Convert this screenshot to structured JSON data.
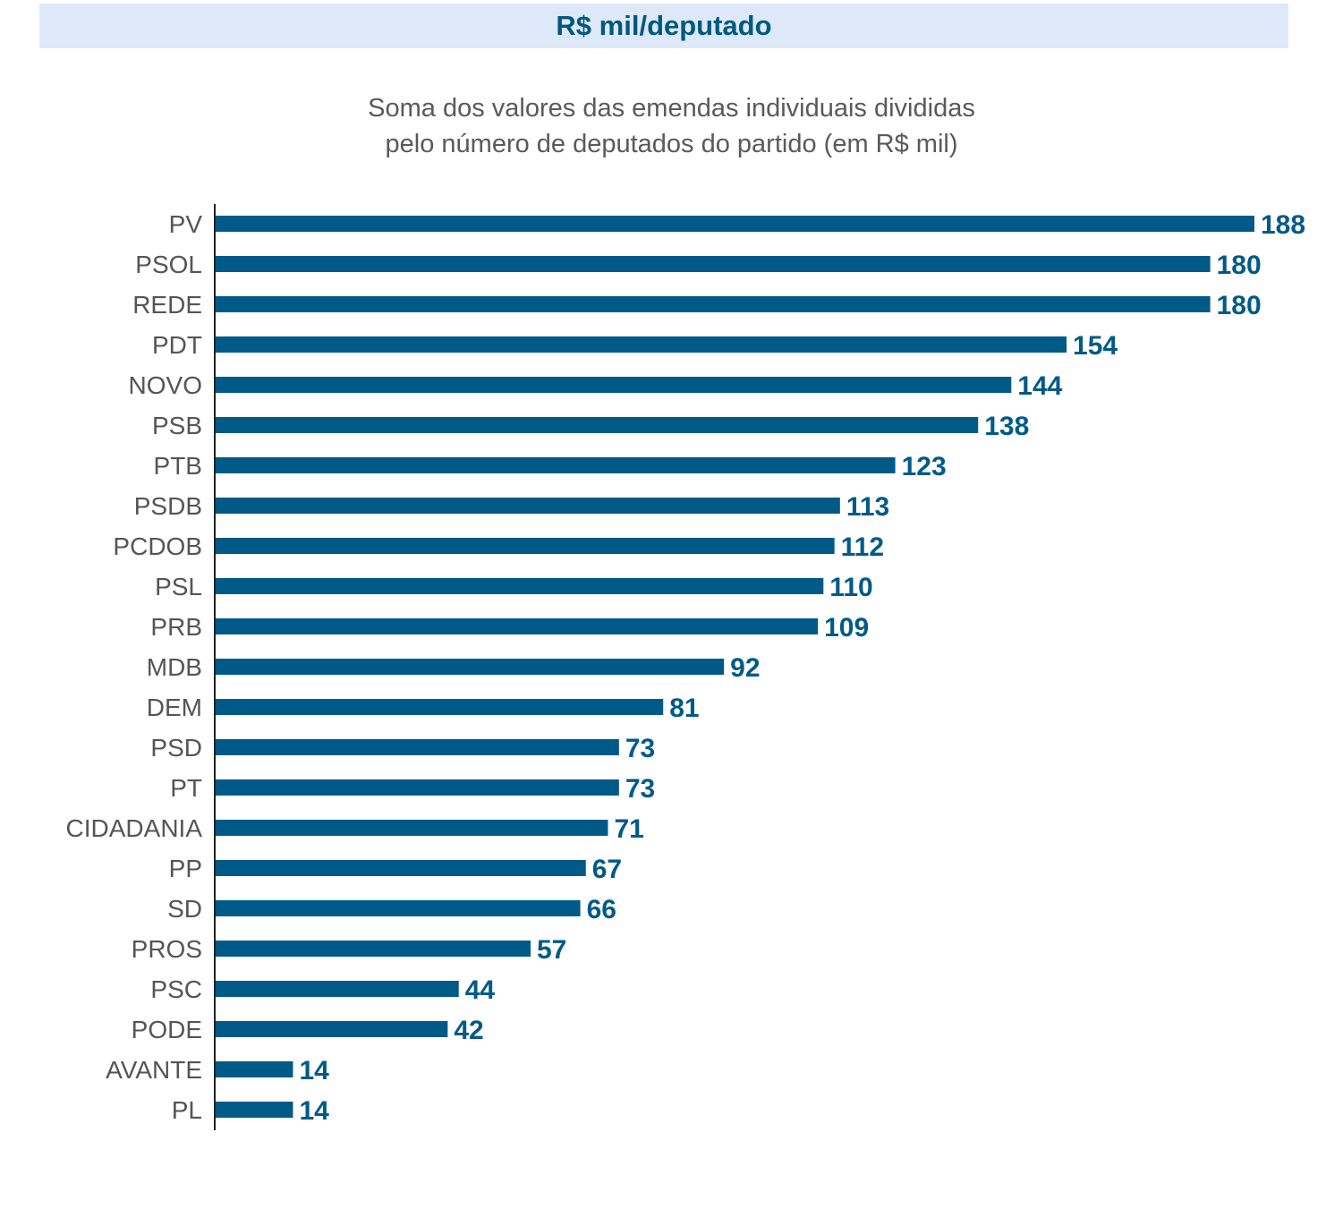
{
  "chart_data": {
    "type": "bar",
    "orientation": "horizontal",
    "title": "R$ mil/deputado",
    "subtitle": [
      "Soma dos valores das emendas individuais divididas",
      "pelo número de deputados do partido (em R$ mil)"
    ],
    "xlabel": "",
    "ylabel": "",
    "xlim": [
      0,
      188
    ],
    "grid": false,
    "legend": "none",
    "colors": {
      "bar": "#005a87",
      "value_label": "#005a87",
      "category_label": "#555555",
      "title": "#00587f",
      "title_band": "#dde9f8"
    },
    "categories": [
      "PV",
      "PSOL",
      "REDE",
      "PDT",
      "NOVO",
      "PSB",
      "PTB",
      "PSDB",
      "PCDOB",
      "PSL",
      "PRB",
      "MDB",
      "DEM",
      "PSD",
      "PT",
      "CIDADANIA",
      "PP",
      "SD",
      "PROS",
      "PSC",
      "PODE",
      "AVANTE",
      "PL"
    ],
    "values": [
      188,
      180,
      180,
      154,
      144,
      138,
      123,
      113,
      112,
      110,
      109,
      92,
      81,
      73,
      73,
      71,
      67,
      66,
      57,
      44,
      42,
      14,
      14
    ]
  }
}
